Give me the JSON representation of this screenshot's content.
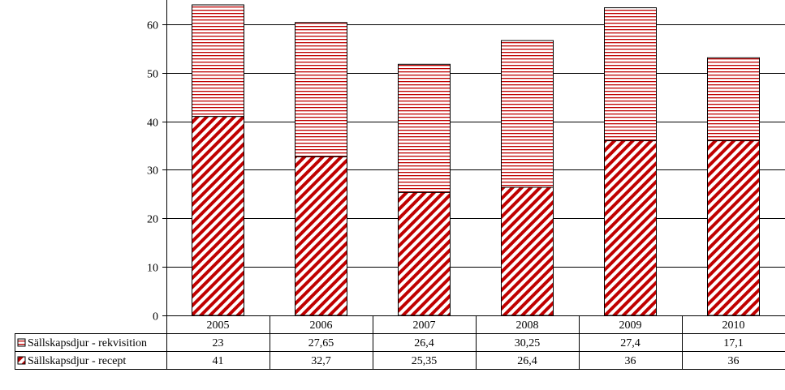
{
  "chart_data": {
    "type": "bar",
    "stacked": true,
    "categories": [
      "2005",
      "2006",
      "2007",
      "2008",
      "2009",
      "2010"
    ],
    "series": [
      {
        "name": "Sällskapsdjur - recept",
        "values": [
          41,
          32.7,
          25.35,
          26.4,
          36,
          36
        ],
        "labels": [
          "41",
          "32,7",
          "25,35",
          "26,4",
          "36",
          "36"
        ],
        "color": "#c00000",
        "pattern": "diagonal-stripes"
      },
      {
        "name": "Sällskapsdjur - rekvisition",
        "values": [
          23,
          27.65,
          26.4,
          30.25,
          27.4,
          17.1
        ],
        "labels": [
          "23",
          "27,65",
          "26,4",
          "30,25",
          "27,4",
          "17,1"
        ],
        "color": "#c00000",
        "pattern": "horizontal-stripes"
      }
    ],
    "y_ticks": [
      "0",
      "10",
      "20",
      "30",
      "40",
      "50",
      "60"
    ],
    "ylim": [
      0,
      65
    ],
    "grid": true,
    "legend": "data-table"
  }
}
